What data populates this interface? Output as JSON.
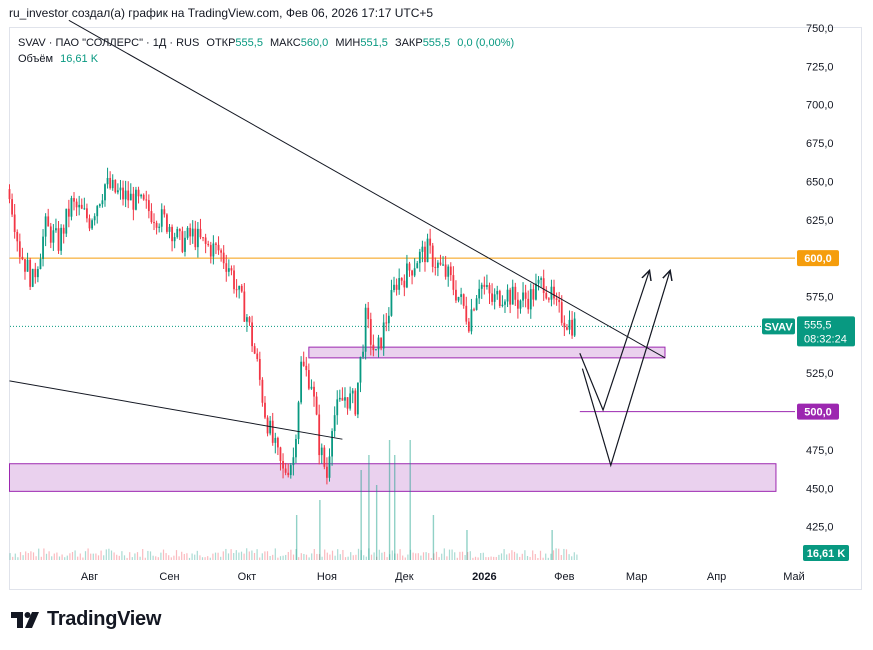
{
  "header": {
    "attribution": "ru_investor создал(а) график на TradingView.com, Фев 06, 2026 17:17 UTC+5"
  },
  "legend": {
    "symbol": "SVAV · ПАО \"СОЛЛЕРС\" · 1Д · RUS",
    "open_label": "ОТКР",
    "open": "555,5",
    "high_label": "МАКС",
    "high": "560,0",
    "low_label": "МИН",
    "low": "551,5",
    "close_label": "ЗАКР",
    "close": "555,5",
    "change": "0,0 (0,00%)",
    "volume_label": "Объём",
    "volume": "16,61 K"
  },
  "footer": {
    "logo_text": "TradingView"
  },
  "colors": {
    "up": "#089981",
    "down": "#f23645",
    "level_orange": "#f59d0c",
    "level_purple": "#9c27b0",
    "zone_fill": "#e1bee7",
    "zone_border": "#9c27b0"
  },
  "chart_data": {
    "type": "candlestick",
    "ylim": [
      400,
      750
    ],
    "y_ticks": [
      "425,0",
      "450,0",
      "475,0",
      "500,0",
      "525,0",
      "575,0",
      "625,0",
      "650,0",
      "675,0",
      "700,0",
      "725,0",
      "750,0"
    ],
    "x_ticks": [
      {
        "label": "Авг",
        "x": "2025-08-01"
      },
      {
        "label": "Сен",
        "x": "2025-09-01"
      },
      {
        "label": "Окт",
        "x": "2025-10-01"
      },
      {
        "label": "Ноя",
        "x": "2025-11-01"
      },
      {
        "label": "Дек",
        "x": "2025-12-01"
      },
      {
        "label": "2026",
        "x": "2026-01-01",
        "bold": true
      },
      {
        "label": "Фев",
        "x": "2026-02-01"
      },
      {
        "label": "Мар",
        "x": "2026-03-01"
      },
      {
        "label": "Апр",
        "x": "2026-04-01"
      },
      {
        "label": "Май",
        "x": "2026-05-01"
      }
    ],
    "price_path": [
      {
        "x": "2025-07-01",
        "y": 645
      },
      {
        "x": "2025-07-05",
        "y": 605
      },
      {
        "x": "2025-07-10",
        "y": 585
      },
      {
        "x": "2025-07-15",
        "y": 620
      },
      {
        "x": "2025-07-20",
        "y": 610
      },
      {
        "x": "2025-07-25",
        "y": 635
      },
      {
        "x": "2025-08-01",
        "y": 625
      },
      {
        "x": "2025-08-07",
        "y": 648
      },
      {
        "x": "2025-08-12",
        "y": 642
      },
      {
        "x": "2025-08-18",
        "y": 638
      },
      {
        "x": "2025-08-25",
        "y": 630
      },
      {
        "x": "2025-09-01",
        "y": 622
      },
      {
        "x": "2025-09-05",
        "y": 610
      },
      {
        "x": "2025-09-10",
        "y": 615
      },
      {
        "x": "2025-09-15",
        "y": 608
      },
      {
        "x": "2025-09-20",
        "y": 605
      },
      {
        "x": "2025-09-24",
        "y": 595
      },
      {
        "x": "2025-09-28",
        "y": 575
      },
      {
        "x": "2025-10-01",
        "y": 562
      },
      {
        "x": "2025-10-05",
        "y": 530
      },
      {
        "x": "2025-10-08",
        "y": 500
      },
      {
        "x": "2025-10-11",
        "y": 480
      },
      {
        "x": "2025-10-15",
        "y": 460
      },
      {
        "x": "2025-10-19",
        "y": 470
      },
      {
        "x": "2025-10-22",
        "y": 530
      },
      {
        "x": "2025-10-26",
        "y": 520
      },
      {
        "x": "2025-10-29",
        "y": 478
      },
      {
        "x": "2025-11-01",
        "y": 458
      },
      {
        "x": "2025-11-03",
        "y": 495
      },
      {
        "x": "2025-11-08",
        "y": 510
      },
      {
        "x": "2025-11-12",
        "y": 505
      },
      {
        "x": "2025-11-16",
        "y": 560
      },
      {
        "x": "2025-11-20",
        "y": 535
      },
      {
        "x": "2025-11-24",
        "y": 560
      },
      {
        "x": "2025-11-28",
        "y": 585
      },
      {
        "x": "2025-12-02",
        "y": 590
      },
      {
        "x": "2025-12-06",
        "y": 600
      },
      {
        "x": "2025-12-10",
        "y": 605
      },
      {
        "x": "2025-12-14",
        "y": 595
      },
      {
        "x": "2025-12-18",
        "y": 588
      },
      {
        "x": "2025-12-22",
        "y": 575
      },
      {
        "x": "2025-12-26",
        "y": 560
      },
      {
        "x": "2025-12-30",
        "y": 585
      },
      {
        "x": "2026-01-04",
        "y": 572
      },
      {
        "x": "2026-01-09",
        "y": 578
      },
      {
        "x": "2026-01-14",
        "y": 572
      },
      {
        "x": "2026-01-19",
        "y": 575
      },
      {
        "x": "2026-01-24",
        "y": 585
      },
      {
        "x": "2026-01-29",
        "y": 566
      },
      {
        "x": "2026-02-03",
        "y": 558
      },
      {
        "x": "2026-02-06",
        "y": 555.5
      }
    ],
    "volume_spikes": [
      {
        "x": "2025-10-20",
        "v": 3
      },
      {
        "x": "2025-10-29",
        "v": 4
      },
      {
        "x": "2025-11-14",
        "v": 6
      },
      {
        "x": "2025-11-17",
        "v": 7
      },
      {
        "x": "2025-11-20",
        "v": 5
      },
      {
        "x": "2025-11-25",
        "v": 8
      },
      {
        "x": "2025-11-27",
        "v": 7
      },
      {
        "x": "2025-12-03",
        "v": 8
      },
      {
        "x": "2025-12-12",
        "v": 3
      },
      {
        "x": "2025-12-25",
        "v": 2
      },
      {
        "x": "2026-01-27",
        "v": 2
      }
    ],
    "levels": [
      {
        "price": 600,
        "label": "600,0",
        "color": "#f59d0c",
        "start": "2025-07-01"
      },
      {
        "price": 500,
        "label": "500,0",
        "color": "#9c27b0",
        "start": "2026-02-07"
      }
    ],
    "last_price": {
      "symbol": "SVAV",
      "price": "555,5",
      "value": 555.5,
      "countdown": "08:32:24",
      "color": "#089981"
    },
    "volume_badge": "16,61 K",
    "zones": [
      {
        "from": "2025-10-25",
        "to": "2026-03-12",
        "top": 542,
        "bottom": 535
      },
      {
        "from": "2025-07-01",
        "to": "2026-04-24",
        "top": 466,
        "bottom": 448
      }
    ],
    "trendlines": [
      {
        "x1": "2025-07-24",
        "y1": 755,
        "x2": "2026-03-12",
        "y2": 535
      },
      {
        "x1": "2025-07-01",
        "y1": 520,
        "x2": "2025-11-07",
        "y2": 482
      }
    ],
    "projection_paths": [
      [
        {
          "x": "2026-02-07",
          "y": 538
        },
        {
          "x": "2026-02-16",
          "y": 501
        },
        {
          "x": "2026-03-06",
          "y": 592
        }
      ],
      [
        {
          "x": "2026-02-08",
          "y": 528
        },
        {
          "x": "2026-02-19",
          "y": 465
        },
        {
          "x": "2026-03-14",
          "y": 592
        }
      ]
    ]
  }
}
